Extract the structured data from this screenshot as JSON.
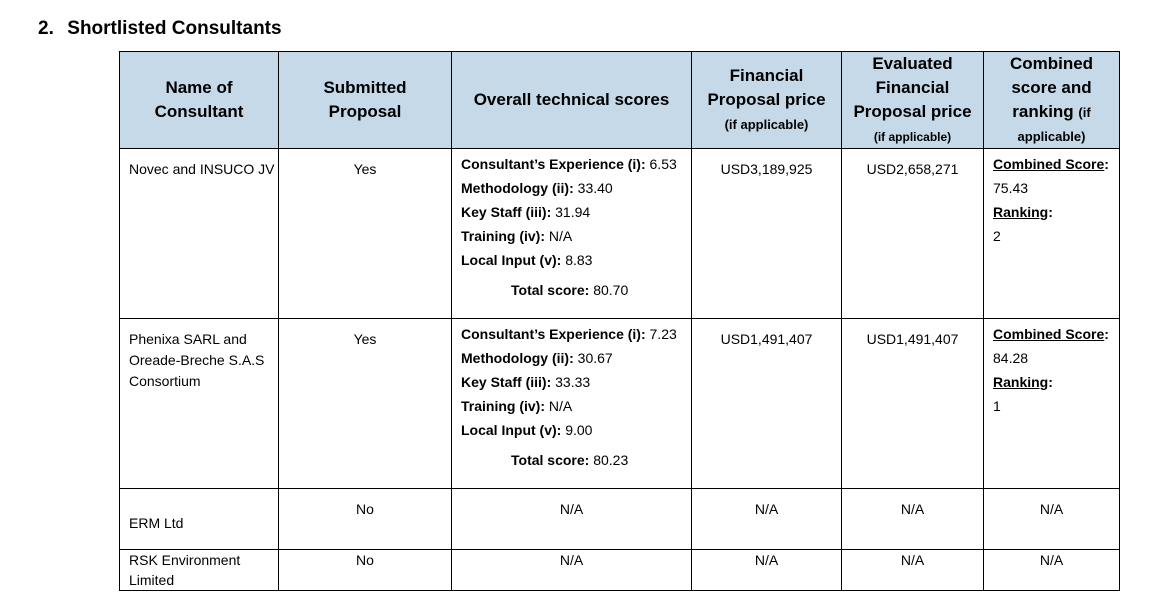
{
  "section": {
    "number": "2.",
    "title": "Shortlisted Consultants"
  },
  "table": {
    "headers": {
      "name": [
        "Name of",
        "Consultant"
      ],
      "submitted": [
        "Submitted",
        "Proposal"
      ],
      "technical": "Overall technical scores",
      "financial": {
        "lines": [
          "Financial",
          "Proposal price"
        ],
        "note": "(if applicable)"
      },
      "evaluated": {
        "lines": [
          "Evaluated",
          "Financial",
          "Proposal price"
        ],
        "note": "(if applicable)"
      },
      "combined": {
        "lines": [
          "Combined",
          "score and"
        ],
        "last": "ranking",
        "note_inline": "(if",
        "note_line": "applicable)"
      }
    },
    "labels": {
      "experience": "Consultant’s Experience (i):",
      "methodology": "Methodology (ii):",
      "key_staff": "Key Staff (iii):",
      "training": "Training (iv):",
      "local_input": "Local Input (v):",
      "total": "Total score:",
      "combined_score": "Combined Score",
      "ranking": "Ranking",
      "colon": ":"
    },
    "rows": [
      {
        "name": "Novec and INSUCO JV",
        "submitted": "Yes",
        "scores": {
          "experience": "6.53",
          "methodology": "33.40",
          "key_staff": "31.94",
          "training": "N/A",
          "local_input": "8.83",
          "total": "80.70"
        },
        "financial": "USD3,189,925",
        "evaluated": "USD2,658,271",
        "combined_score": "75.43",
        "ranking": "2"
      },
      {
        "name": "Phenixa SARL and Oreade-Breche S.A.S Consortium",
        "submitted": "Yes",
        "scores": {
          "experience": "7.23",
          "methodology": "30.67",
          "key_staff": "33.33",
          "training": "N/A",
          "local_input": "9.00",
          "total": "80.23"
        },
        "financial": "USD1,491,407",
        "evaluated": "USD1,491,407",
        "combined_score": "84.28",
        "ranking": "1"
      },
      {
        "name": "ERM Ltd",
        "submitted": "No",
        "technical": "N/A",
        "financial": "N/A",
        "evaluated": "N/A",
        "combined": "N/A"
      },
      {
        "name": "RSK Environment Limited",
        "submitted": "No",
        "technical": "N/A",
        "financial": "N/A",
        "evaluated": "N/A",
        "combined": "N/A"
      }
    ]
  }
}
